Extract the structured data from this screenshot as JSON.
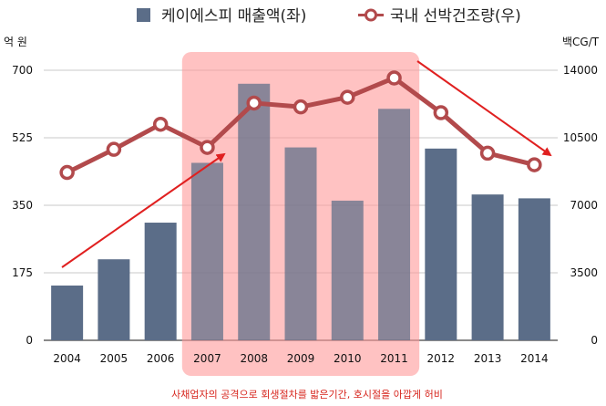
{
  "chart_data": {
    "type": "bar",
    "categories": [
      "2004",
      "2005",
      "2006",
      "2007",
      "2008",
      "2009",
      "2010",
      "2011",
      "2012",
      "2013",
      "2014"
    ],
    "series": [
      {
        "name": "케이에스피 매출액(좌)",
        "chart": "bar",
        "axis": "left",
        "color": "#5b6d88",
        "values": [
          142,
          210,
          305,
          460,
          665,
          500,
          362,
          600,
          497,
          378,
          368
        ]
      },
      {
        "name": "국내 선박건조량(우)",
        "chart": "line",
        "axis": "right",
        "color": "#b24a4c",
        "values": [
          8700,
          9900,
          11200,
          10000,
          12300,
          12100,
          12600,
          13600,
          11800,
          9700,
          9100
        ]
      }
    ],
    "left_axis": {
      "unit": "억 원",
      "ticks": [
        "0",
        "175",
        "350",
        "525",
        "700"
      ],
      "ylim": [
        0,
        700
      ]
    },
    "right_axis": {
      "unit": "백CG/T",
      "ticks": [
        "0",
        "3500",
        "7000",
        "10500",
        "14000"
      ],
      "ylim": [
        0,
        14000
      ]
    },
    "grid": true,
    "legend_position": "top",
    "highlight": {
      "from_category": "2007",
      "to_category": "2011",
      "color": "#ff9999",
      "note": "사채업자의 공격으로 회생절차를 밟은기간,  호시절을 아깝게 허비"
    },
    "trend_arrows": [
      {
        "from_category": "2004",
        "to_category": "2007",
        "direction": "up",
        "color": "#e02020"
      },
      {
        "from_category": "2011",
        "to_category": "2014",
        "direction": "down",
        "color": "#e02020"
      }
    ]
  }
}
